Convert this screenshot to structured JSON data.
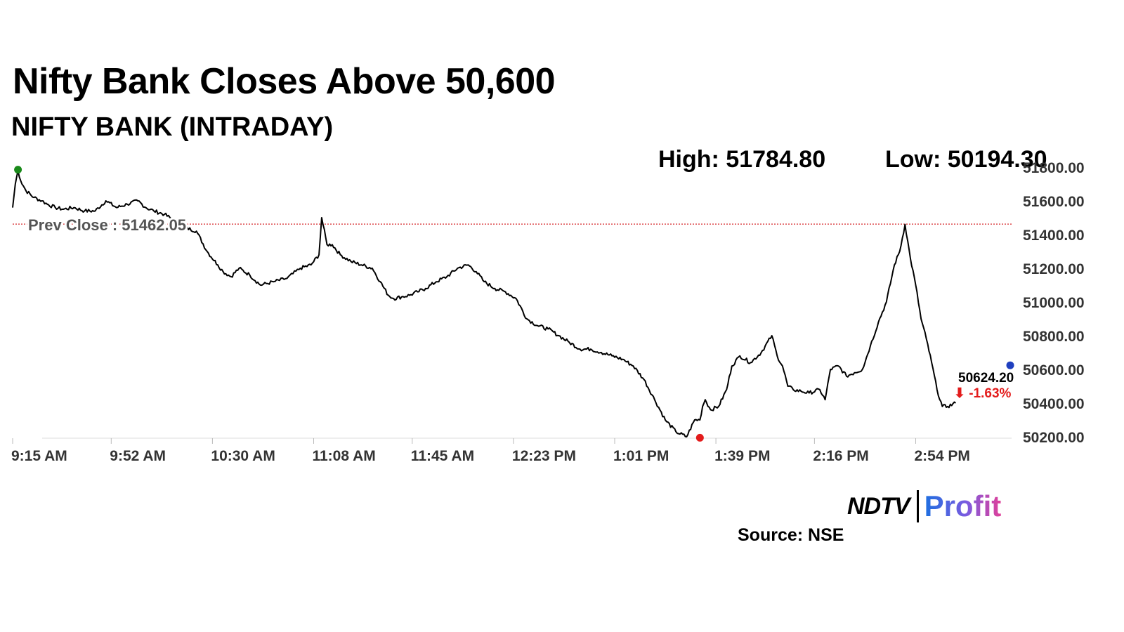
{
  "header": {
    "title": "Nifty Bank Closes Above 50,600",
    "subtitle": "NIFTY BANK (INTRADAY)",
    "high_text": "High: 51784.80",
    "low_text": "Low: 50194.30"
  },
  "footer": {
    "logo_left": "NDTV",
    "logo_right": "Profit",
    "source": "Source: NSE"
  },
  "colors": {
    "line": "#000000",
    "prev_close": "#d62728",
    "high_marker": "#1a8a1a",
    "low_marker": "#e31b1b",
    "close_marker": "#1f3fbf",
    "change": "#e31b1b"
  },
  "chart_data": {
    "type": "line",
    "title": "NIFTY BANK (INTRADAY)",
    "xlabel": "",
    "ylabel": "",
    "x_ticks": [
      "9:15 AM",
      "9:52 AM",
      "10:30 AM",
      "11:08 AM",
      "11:45 AM",
      "12:23 PM",
      "1:01 PM",
      "1:39 PM",
      "2:16 PM",
      "2:54 PM"
    ],
    "y_ticks": [
      "51800.00",
      "51600.00",
      "51400.00",
      "51200.00",
      "51000.00",
      "50800.00",
      "50600.00",
      "50400.00",
      "50200.00"
    ],
    "ylim": [
      50200,
      51800
    ],
    "xlim": [
      "09:15",
      "15:30"
    ],
    "grid": false,
    "high": 51784.8,
    "low": 50194.3,
    "prev_close": 51462.05,
    "prev_close_label": "Prev Close : 51462.05",
    "last_value_label": "50624.20",
    "change_label": "⬇ -1.63%",
    "series": [
      {
        "x": [
          "09:15",
          "09:16",
          "09:17",
          "09:18",
          "09:20",
          "09:23",
          "09:26",
          "09:28",
          "09:31",
          "09:34",
          "09:38",
          "09:42",
          "09:46",
          "09:50",
          "09:54",
          "09:58",
          "10:02",
          "10:05",
          "10:08",
          "10:12",
          "10:16",
          "10:20",
          "10:24",
          "10:28",
          "10:32",
          "10:34",
          "10:37",
          "10:40",
          "10:44",
          "10:48",
          "10:53",
          "10:58",
          "11:03",
          "11:07",
          "11:10",
          "11:11",
          "11:13",
          "11:15",
          "11:18",
          "11:22",
          "11:26",
          "11:30",
          "11:33",
          "11:36",
          "11:38",
          "11:41",
          "11:44",
          "11:47",
          "11:50",
          "11:54",
          "11:58",
          "12:02",
          "12:06",
          "12:09",
          "12:12",
          "12:16",
          "12:20",
          "12:24",
          "12:28",
          "12:32",
          "12:36",
          "12:40",
          "12:44",
          "12:48",
          "12:52",
          "12:56",
          "13:00",
          "13:04",
          "13:08",
          "13:12",
          "13:16",
          "13:20",
          "13:24",
          "13:28",
          "13:31",
          "13:33",
          "13:34",
          "13:35",
          "13:37",
          "13:40",
          "13:43",
          "13:45",
          "13:48",
          "13:52",
          "13:56",
          "14:00",
          "14:02",
          "14:04",
          "14:06",
          "14:08",
          "14:11",
          "14:14",
          "14:18",
          "14:20",
          "14:22",
          "14:25",
          "14:28",
          "14:31",
          "14:34",
          "14:37",
          "14:40",
          "14:43",
          "14:46",
          "14:48",
          "14:50",
          "14:52",
          "14:54",
          "14:56",
          "14:58",
          "15:00",
          "15:02",
          "15:04",
          "15:06",
          "15:09"
        ],
        "y": [
          51560,
          51700,
          51780,
          51720,
          51660,
          51620,
          51600,
          51580,
          51560,
          51550,
          51560,
          51540,
          51540,
          51600,
          51560,
          51580,
          51600,
          51560,
          51540,
          51520,
          51480,
          51440,
          51420,
          51300,
          51220,
          51180,
          51150,
          51200,
          51160,
          51100,
          51120,
          51140,
          51200,
          51220,
          51280,
          51500,
          51340,
          51340,
          51280,
          51240,
          51220,
          51200,
          51120,
          51040,
          51020,
          51030,
          51040,
          51060,
          51080,
          51120,
          51150,
          51200,
          51220,
          51180,
          51120,
          51080,
          51060,
          51020,
          50900,
          50860,
          50840,
          50800,
          50760,
          50720,
          50720,
          50700,
          50680,
          50660,
          50620,
          50540,
          50420,
          50300,
          50230,
          50200,
          50300,
          50300,
          50380,
          50420,
          50360,
          50380,
          50480,
          50620,
          50680,
          50640,
          50700,
          50800,
          50680,
          50620,
          50500,
          50480,
          50470,
          50460,
          50480,
          50420,
          50600,
          50620,
          50560,
          50580,
          50600,
          50740,
          50880,
          51000,
          51220,
          51300,
          51460,
          51260,
          51100,
          50900,
          50780,
          50640,
          50480,
          50380,
          50380,
          50400
        ]
      }
    ]
  }
}
